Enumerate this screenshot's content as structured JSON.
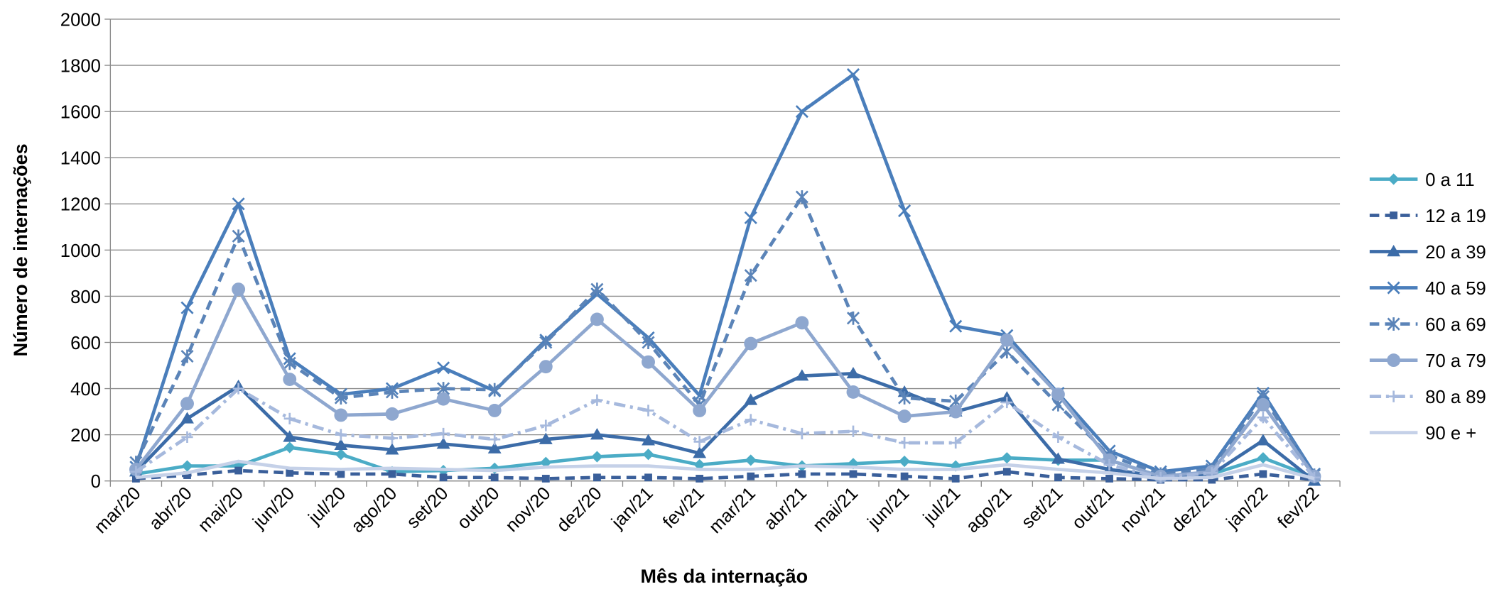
{
  "chart_data": {
    "type": "line",
    "x_label": "Mês da internação",
    "y_label": "Número de internações",
    "categories": [
      "mar/20",
      "abr/20",
      "mai/20",
      "jun/20",
      "jul/20",
      "ago/20",
      "set/20",
      "out/20",
      "nov/20",
      "dez/20",
      "jan/21",
      "fev/21",
      "mar/21",
      "abr/21",
      "mai/21",
      "jun/21",
      "jul/21",
      "ago/21",
      "set/21",
      "out/21",
      "nov/21",
      "dez/21",
      "jan/22",
      "fev/22"
    ],
    "ylim": [
      0,
      2000
    ],
    "yticks": [
      0,
      200,
      400,
      600,
      800,
      1000,
      1200,
      1400,
      1600,
      1800,
      2000
    ],
    "grid": true,
    "legend": "right",
    "series": [
      {
        "name": "0 a 11",
        "color": "#4bacc6",
        "marker": "diamond",
        "dash": "solid",
        "values": [
          30,
          65,
          65,
          145,
          115,
          40,
          45,
          55,
          80,
          105,
          115,
          70,
          90,
          65,
          75,
          85,
          65,
          100,
          90,
          90,
          20,
          30,
          100,
          15
        ]
      },
      {
        "name": "12 a 19",
        "color": "#3a5f9a",
        "marker": "square",
        "dash": "dashed",
        "values": [
          10,
          25,
          45,
          35,
          30,
          30,
          15,
          15,
          10,
          15,
          15,
          10,
          20,
          30,
          30,
          20,
          10,
          40,
          15,
          10,
          5,
          5,
          30,
          5
        ]
      },
      {
        "name": "20 a 39",
        "color": "#3c6ca8",
        "marker": "triangle",
        "dash": "solid",
        "values": [
          40,
          270,
          410,
          190,
          155,
          135,
          160,
          140,
          180,
          200,
          175,
          120,
          350,
          455,
          465,
          385,
          300,
          360,
          95,
          50,
          20,
          30,
          175,
          0
        ]
      },
      {
        "name": "40 a 59",
        "color": "#4a7ebb",
        "marker": "x",
        "dash": "solid",
        "values": [
          60,
          750,
          1200,
          530,
          375,
          400,
          490,
          390,
          610,
          810,
          620,
          370,
          1140,
          1600,
          1760,
          1170,
          670,
          630,
          380,
          130,
          40,
          65,
          380,
          30
        ]
      },
      {
        "name": "60 a 69",
        "color": "#5b84b8",
        "marker": "star",
        "dash": "dashed",
        "values": [
          80,
          540,
          1060,
          510,
          360,
          385,
          400,
          395,
          600,
          830,
          600,
          330,
          890,
          1230,
          705,
          360,
          345,
          560,
          330,
          110,
          30,
          50,
          365,
          25
        ]
      },
      {
        "name": "70 a 79",
        "color": "#8ea7cf",
        "marker": "circle",
        "dash": "solid",
        "values": [
          50,
          335,
          830,
          440,
          285,
          290,
          355,
          305,
          495,
          700,
          515,
          305,
          595,
          685,
          385,
          280,
          300,
          610,
          375,
          90,
          20,
          40,
          330,
          20
        ]
      },
      {
        "name": "80 a 89",
        "color": "#a6b9dd",
        "marker": "plus",
        "dash": "dashdot",
        "values": [
          40,
          190,
          400,
          270,
          200,
          185,
          205,
          180,
          240,
          350,
          305,
          170,
          265,
          205,
          215,
          165,
          165,
          340,
          190,
          70,
          15,
          35,
          275,
          15
        ]
      },
      {
        "name": "90 e +",
        "color": "#c5d1e8",
        "marker": "none",
        "dash": "solid",
        "values": [
          15,
          35,
          85,
          55,
          50,
          55,
          50,
          45,
          60,
          65,
          65,
          50,
          50,
          65,
          60,
          50,
          50,
          70,
          50,
          35,
          10,
          15,
          70,
          10
        ]
      }
    ]
  }
}
